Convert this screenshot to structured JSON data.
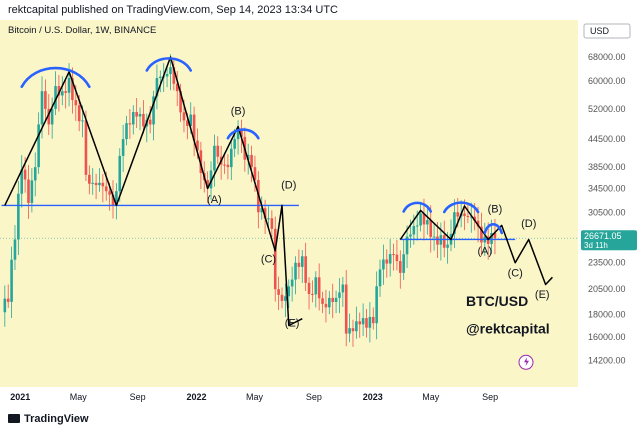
{
  "header": {
    "published": "rektcapital published on TradingView.com, Sep 14, 2023 13:34 UTC"
  },
  "footer": {
    "brand": "TradingView"
  },
  "colors": {
    "background": "#faf6c8",
    "bull": "#26a69a",
    "bear": "#ef5350",
    "trendline": "#000000",
    "support": "#2962ff",
    "arcs": "#2962ff",
    "price_badge": "#26a69a"
  },
  "chart_data": {
    "type": "candlestick",
    "title": "Bitcoin / U.S. Dollar, 1W, BINANCE",
    "currency_button": "USD",
    "watermark": [
      "BTC/USD",
      "@rektcapital"
    ],
    "y_scale": "log",
    "ylim": [
      12500,
      75000
    ],
    "y_ticks": [
      68000,
      60000,
      52000,
      44500,
      38500,
      34500,
      30500,
      26500,
      23500,
      20500,
      18000,
      16000,
      14200
    ],
    "x_ticks": [
      {
        "label": "2021",
        "date": "2021-01-01"
      },
      {
        "label": "May",
        "date": "2021-05-01"
      },
      {
        "label": "Sep",
        "date": "2021-09-01"
      },
      {
        "label": "2022",
        "date": "2022-01-01"
      },
      {
        "label": "May",
        "date": "2022-05-01"
      },
      {
        "label": "Sep",
        "date": "2022-09-01"
      },
      {
        "label": "2023",
        "date": "2023-01-01"
      },
      {
        "label": "May",
        "date": "2023-05-01"
      },
      {
        "label": "Sep",
        "date": "2023-09-01"
      }
    ],
    "xlim": [
      "2020-11-20",
      "2024-03-01"
    ],
    "current_price": {
      "value": "26671.05",
      "countdown": "3d 11h"
    },
    "closes": [
      {
        "date": "2020-11-23",
        "close": 18200
      },
      {
        "date": "2020-12-07",
        "close": 19200
      },
      {
        "date": "2020-12-21",
        "close": 26500
      },
      {
        "date": "2021-01-04",
        "close": 38000
      },
      {
        "date": "2021-01-18",
        "close": 32000
      },
      {
        "date": "2021-02-01",
        "close": 38500
      },
      {
        "date": "2021-02-15",
        "close": 57000
      },
      {
        "date": "2021-03-01",
        "close": 48000
      },
      {
        "date": "2021-03-15",
        "close": 58500
      },
      {
        "date": "2021-03-29",
        "close": 57000
      },
      {
        "date": "2021-04-12",
        "close": 61000
      },
      {
        "date": "2021-04-26",
        "close": 53000
      },
      {
        "date": "2021-05-10",
        "close": 49000
      },
      {
        "date": "2021-05-17",
        "close": 37000
      },
      {
        "date": "2021-05-31",
        "close": 35500
      },
      {
        "date": "2021-06-14",
        "close": 35500
      },
      {
        "date": "2021-06-28",
        "close": 34000
      },
      {
        "date": "2021-07-12",
        "close": 31600
      },
      {
        "date": "2021-07-19",
        "close": 34000
      },
      {
        "date": "2021-08-02",
        "close": 44500
      },
      {
        "date": "2021-08-16",
        "close": 48000
      },
      {
        "date": "2021-08-30",
        "close": 50000
      },
      {
        "date": "2021-09-13",
        "close": 47500
      },
      {
        "date": "2021-09-27",
        "close": 48000
      },
      {
        "date": "2021-10-11",
        "close": 61000
      },
      {
        "date": "2021-10-25",
        "close": 61500
      },
      {
        "date": "2021-11-08",
        "close": 64500
      },
      {
        "date": "2021-11-22",
        "close": 57000
      },
      {
        "date": "2021-12-06",
        "close": 49000
      },
      {
        "date": "2021-12-20",
        "close": 50500
      },
      {
        "date": "2022-01-03",
        "close": 42000
      },
      {
        "date": "2022-01-17",
        "close": 36000
      },
      {
        "date": "2022-01-24",
        "close": 34500
      },
      {
        "date": "2022-02-07",
        "close": 43000
      },
      {
        "date": "2022-02-21",
        "close": 39000
      },
      {
        "date": "2022-03-07",
        "close": 38500
      },
      {
        "date": "2022-03-21",
        "close": 44500
      },
      {
        "date": "2022-03-28",
        "close": 46500
      },
      {
        "date": "2022-04-11",
        "close": 40000
      },
      {
        "date": "2022-04-25",
        "close": 38500
      },
      {
        "date": "2022-05-09",
        "close": 30500
      },
      {
        "date": "2022-05-23",
        "close": 29500
      },
      {
        "date": "2022-06-06",
        "close": 28000
      },
      {
        "date": "2022-06-13",
        "close": 20500
      },
      {
        "date": "2022-06-27",
        "close": 19300
      },
      {
        "date": "2022-07-11",
        "close": 20800
      },
      {
        "date": "2022-07-25",
        "close": 23500
      },
      {
        "date": "2022-08-08",
        "close": 24300
      },
      {
        "date": "2022-08-22",
        "close": 20000
      },
      {
        "date": "2022-09-05",
        "close": 21800
      },
      {
        "date": "2022-09-19",
        "close": 19000
      },
      {
        "date": "2022-10-03",
        "close": 19600
      },
      {
        "date": "2022-10-17",
        "close": 19600
      },
      {
        "date": "2022-10-31",
        "close": 21000
      },
      {
        "date": "2022-11-07",
        "close": 16300
      },
      {
        "date": "2022-11-21",
        "close": 16500
      },
      {
        "date": "2022-12-05",
        "close": 17100
      },
      {
        "date": "2022-12-19",
        "close": 16800
      },
      {
        "date": "2023-01-02",
        "close": 17200
      },
      {
        "date": "2023-01-16",
        "close": 22700
      },
      {
        "date": "2023-01-30",
        "close": 23400
      },
      {
        "date": "2023-02-13",
        "close": 24500
      },
      {
        "date": "2023-02-27",
        "close": 22300
      },
      {
        "date": "2023-03-13",
        "close": 26900
      },
      {
        "date": "2023-03-27",
        "close": 28400
      },
      {
        "date": "2023-04-10",
        "close": 30300
      },
      {
        "date": "2023-04-24",
        "close": 29300
      },
      {
        "date": "2023-05-08",
        "close": 26900
      },
      {
        "date": "2023-05-22",
        "close": 27100
      },
      {
        "date": "2023-06-05",
        "close": 25800
      },
      {
        "date": "2023-06-19",
        "close": 30500
      },
      {
        "date": "2023-07-03",
        "close": 30300
      },
      {
        "date": "2023-07-17",
        "close": 29800
      },
      {
        "date": "2023-07-31",
        "close": 29200
      },
      {
        "date": "2023-08-14",
        "close": 26100
      },
      {
        "date": "2023-08-28",
        "close": 25900
      },
      {
        "date": "2023-09-11",
        "close": 26671
      }
    ],
    "support_lines": [
      {
        "price": 31600,
        "from": "2020-11-23",
        "to": "2022-08-01"
      },
      {
        "price": 26500,
        "from": "2023-02-27",
        "to": "2023-10-23"
      }
    ],
    "pattern_path_2021": [
      {
        "date": "2020-11-30",
        "price": 31600
      },
      {
        "date": "2021-04-12",
        "price": 63000
      },
      {
        "date": "2021-07-19",
        "price": 31600
      },
      {
        "date": "2021-11-08",
        "price": 68000
      },
      {
        "date": "2022-01-24",
        "price": 34500
      },
      {
        "date": "2022-03-28",
        "price": 47500
      },
      {
        "date": "2022-06-13",
        "price": 25000
      },
      {
        "date": "2022-06-27",
        "price": 31600
      },
      {
        "date": "2022-07-11",
        "price": 17000
      },
      {
        "date": "2022-08-08",
        "price": 17600
      }
    ],
    "pattern_path_2023": [
      {
        "date": "2023-02-27",
        "price": 26500
      },
      {
        "date": "2023-04-10",
        "price": 30800
      },
      {
        "date": "2023-06-12",
        "price": 26500
      },
      {
        "date": "2023-07-10",
        "price": 31500
      },
      {
        "date": "2023-08-28",
        "price": 26500
      },
      {
        "date": "2023-09-25",
        "price": 28500
      },
      {
        "date": "2023-10-23",
        "price": 23500
      },
      {
        "date": "2023-11-20",
        "price": 26500
      },
      {
        "date": "2023-12-25",
        "price": 21000
      },
      {
        "date": "2024-01-08",
        "price": 21800
      }
    ],
    "arcs": [
      {
        "from": "2021-01-04",
        "to": "2021-05-24",
        "price": 62000
      },
      {
        "from": "2021-09-20",
        "to": "2021-12-20",
        "price": 66000
      },
      {
        "from": "2022-03-07",
        "to": "2022-05-09",
        "price": 46000
      },
      {
        "from": "2023-03-06",
        "to": "2023-05-01",
        "price": 31500
      },
      {
        "from": "2023-05-29",
        "to": "2023-08-07",
        "price": 31500
      },
      {
        "from": "2023-08-21",
        "to": "2023-09-25",
        "price": 28200
      }
    ],
    "annotations": [
      {
        "text": "(A)",
        "date": "2022-02-07",
        "price": 32000
      },
      {
        "text": "(B)",
        "date": "2022-03-28",
        "price": 50500
      },
      {
        "text": "(D)",
        "date": "2022-07-11",
        "price": 34500
      },
      {
        "text": "(C)",
        "date": "2022-05-30",
        "price": 23500
      },
      {
        "text": "(E)",
        "date": "2022-07-18",
        "price": 16900
      },
      {
        "text": "(B)",
        "date": "2023-09-11",
        "price": 30500
      },
      {
        "text": "(D)",
        "date": "2023-11-20",
        "price": 28300
      },
      {
        "text": "(A)",
        "date": "2023-08-21",
        "price": 24500
      },
      {
        "text": "(C)",
        "date": "2023-10-23",
        "price": 21900
      },
      {
        "text": "(E)",
        "date": "2023-12-18",
        "price": 19600
      }
    ]
  }
}
